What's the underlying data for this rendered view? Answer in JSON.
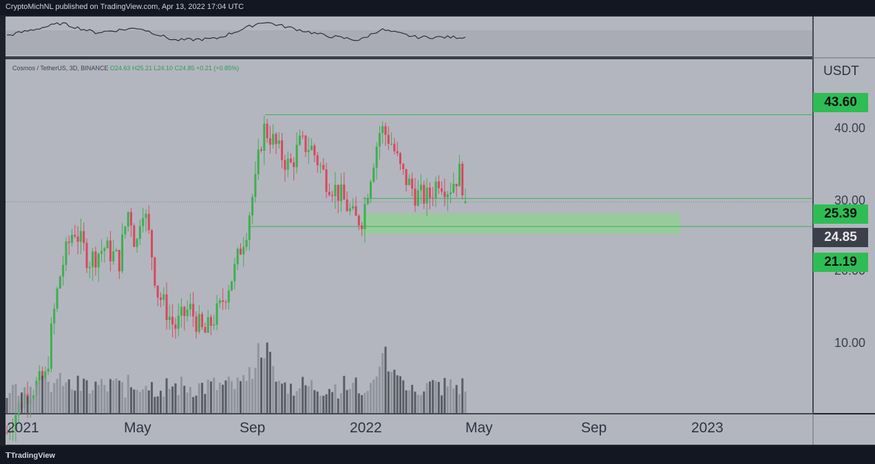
{
  "header": {
    "published": "CryptoMichNL published on TradingView.com, Apr 13, 2022 17:04 UTC"
  },
  "footer": {
    "brand": "TradingView"
  },
  "legend": {
    "symbol": "Cosmos / TetherUS, 3D, BINANCE",
    "open": "O24.63",
    "high": "H25.21",
    "low": "L24.10",
    "close": "C24.85",
    "change": "+0.21 (+0.85%)"
  },
  "price_axis": {
    "currency": "USDT",
    "ticks": [
      "40.00",
      "30.00",
      "20.00",
      "10.00"
    ]
  },
  "price_tags": {
    "top": {
      "label": "43.60",
      "color": "#2ebd54"
    },
    "upper": {
      "label": "25.39",
      "color": "#2ebd54"
    },
    "current": {
      "label": "24.85",
      "color": "#3b3f4a"
    },
    "lower": {
      "label": "21.19",
      "color": "#2ebd54"
    }
  },
  "time_axis": {
    "ticks": [
      "2021",
      "May",
      "Sep",
      "2022",
      "May",
      "Sep",
      "2023"
    ]
  },
  "colors": {
    "up": "#3fae4f",
    "down": "#d9475b",
    "pane_bg": "#b3b6bf",
    "zone": "#8fd18f"
  },
  "chart_data": {
    "type": "candlestick",
    "title": "Cosmos / TetherUS, 3D, BINANCE",
    "ylabel": "USDT",
    "scale": "log",
    "y_range": [
      5,
      50
    ],
    "x_range": [
      "2021-01-01",
      "2023-02-15"
    ],
    "horizontal_levels": [
      43.6,
      25.39,
      21.19
    ],
    "support_zone": {
      "from": "2021-12-27",
      "to": "2022-11-15",
      "low": 20.2,
      "high": 23.0
    },
    "last": {
      "date": "2022-04-13",
      "open": 24.63,
      "high": 25.21,
      "low": 24.1,
      "close": 24.85
    },
    "close_path": [
      [
        "2021-01-01",
        5.6
      ],
      [
        "2021-01-20",
        7.2
      ],
      [
        "2021-02-10",
        8.0
      ],
      [
        "2021-02-25",
        16.0
      ],
      [
        "2021-03-10",
        21.0
      ],
      [
        "2021-03-25",
        17.0
      ],
      [
        "2021-04-10",
        18.5
      ],
      [
        "2021-04-25",
        17.0
      ],
      [
        "2021-05-05",
        24.0
      ],
      [
        "2021-05-12",
        18.0
      ],
      [
        "2021-05-18",
        25.0
      ],
      [
        "2021-05-25",
        20.0
      ],
      [
        "2021-06-02",
        14.0
      ],
      [
        "2021-06-20",
        11.0
      ],
      [
        "2021-07-05",
        12.5
      ],
      [
        "2021-07-20",
        10.5
      ],
      [
        "2021-08-05",
        12.5
      ],
      [
        "2021-08-20",
        16.0
      ],
      [
        "2021-09-01",
        21.0
      ],
      [
        "2021-09-10",
        28.0
      ],
      [
        "2021-09-18",
        40.0
      ],
      [
        "2021-09-25",
        38.0
      ],
      [
        "2021-10-05",
        34.0
      ],
      [
        "2021-10-15",
        31.0
      ],
      [
        "2021-10-25",
        36.0
      ],
      [
        "2021-11-05",
        35.5
      ],
      [
        "2021-11-20",
        29.0
      ],
      [
        "2021-12-05",
        26.0
      ],
      [
        "2021-12-20",
        22.0
      ],
      [
        "2021-12-28",
        22.5
      ],
      [
        "2022-01-05",
        30.0
      ],
      [
        "2022-01-15",
        40.0
      ],
      [
        "2022-01-25",
        37.0
      ],
      [
        "2022-02-05",
        30.0
      ],
      [
        "2022-02-20",
        26.0
      ],
      [
        "2022-03-05",
        25.5
      ],
      [
        "2022-03-15",
        29.0
      ],
      [
        "2022-03-25",
        27.0
      ],
      [
        "2022-04-05",
        30.0
      ],
      [
        "2022-04-13",
        24.85
      ]
    ],
    "volume_profile": {
      "note": "relative volume bars, peaks near Sep 2021 and Jan 2022",
      "peaks": [
        [
          "2021-02-25",
          0.45
        ],
        [
          "2021-05-20",
          0.38
        ],
        [
          "2021-09-18",
          0.9
        ],
        [
          "2022-01-20",
          0.75
        ]
      ]
    },
    "rsi_path": [
      [
        "2021-01-01",
        45
      ],
      [
        "2021-02-25",
        85
      ],
      [
        "2021-04-01",
        55
      ],
      [
        "2021-05-15",
        70
      ],
      [
        "2021-06-20",
        30
      ],
      [
        "2021-08-01",
        35
      ],
      [
        "2021-09-18",
        90
      ],
      [
        "2021-11-20",
        45
      ],
      [
        "2021-12-25",
        30
      ],
      [
        "2022-01-15",
        65
      ],
      [
        "2022-02-20",
        40
      ],
      [
        "2022-04-13",
        40
      ]
    ]
  }
}
